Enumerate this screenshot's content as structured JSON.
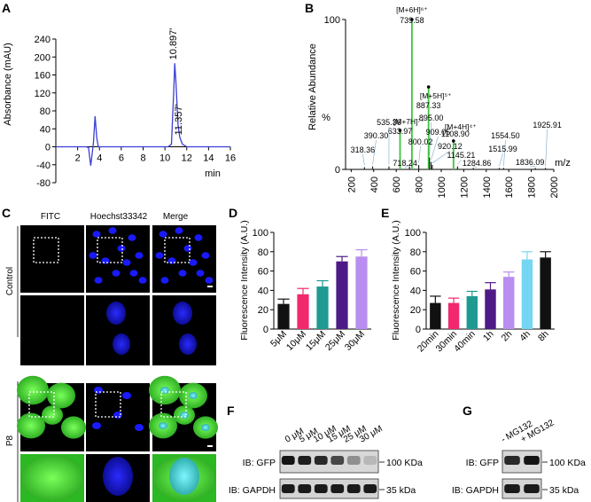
{
  "panels": {
    "A": {
      "letter": "A",
      "chart_data": {
        "type": "line",
        "xlabel": "min",
        "ylabel": "Absorbance (mAU)",
        "xlim": [
          0,
          16
        ],
        "ylim": [
          -80,
          240
        ],
        "xticks": [
          2,
          4,
          6,
          8,
          10,
          12,
          14,
          16
        ],
        "yticks": [
          -80,
          -40,
          0,
          40,
          80,
          120,
          160,
          200,
          240
        ],
        "color": "#3a3fd6",
        "points": [
          [
            0,
            0
          ],
          [
            2.8,
            0
          ],
          [
            3.0,
            -2
          ],
          [
            3.2,
            -42
          ],
          [
            3.35,
            -12
          ],
          [
            3.45,
            10
          ],
          [
            3.6,
            68
          ],
          [
            3.75,
            20
          ],
          [
            3.9,
            0
          ],
          [
            10.3,
            0
          ],
          [
            10.6,
            6
          ],
          [
            10.8,
            120
          ],
          [
            10.897,
            186
          ],
          [
            11.0,
            150
          ],
          [
            11.2,
            50
          ],
          [
            11.357,
            22
          ],
          [
            11.6,
            6
          ],
          [
            12.0,
            0
          ],
          [
            16,
            0
          ]
        ],
        "annotations": [
          {
            "x": 10.897,
            "y": 186,
            "text": "10.897'"
          },
          {
            "x": 11.357,
            "y": 22,
            "text": "11.357'"
          }
        ]
      }
    },
    "B": {
      "letter": "B",
      "chart_data": {
        "type": "bar",
        "xlabel": "m/z",
        "ylabel": "Relative Abundance",
        "ylabel_unit": "%",
        "xlim": [
          150,
          2000
        ],
        "ylim": [
          0,
          100
        ],
        "xticks": [
          200,
          400,
          600,
          800,
          1000,
          1200,
          1400,
          1600,
          1800,
          2000
        ],
        "yticks": [
          0,
          100
        ],
        "color_highlight": "#3ec43e",
        "color_minor": "#222222",
        "peaks": [
          {
            "x": 739.58,
            "y": 100,
            "highlight": true,
            "label": "739.58",
            "ion": "[M+6H]⁶⁺"
          },
          {
            "x": 887.33,
            "y": 55,
            "highlight": true,
            "label": "887.33",
            "ion": "[M+5H]⁵⁺"
          },
          {
            "x": 633.97,
            "y": 26,
            "highlight": true,
            "label": "633.97",
            "ion": "[M+7H]⁷⁺"
          },
          {
            "x": 1108.9,
            "y": 19,
            "highlight": true,
            "label": "1108.90",
            "ion": "[M+4H]⁴⁺"
          },
          {
            "x": 895.0,
            "y": 8,
            "label": "895.00"
          },
          {
            "x": 909.05,
            "y": 5,
            "label": "909.05"
          },
          {
            "x": 920.12,
            "y": 3,
            "label": "920.12"
          },
          {
            "x": 800.02,
            "y": 3,
            "label": "800.02"
          },
          {
            "x": 718.24,
            "y": 2,
            "label": "718.24"
          },
          {
            "x": 1145.21,
            "y": 2,
            "label": "1145.21"
          },
          {
            "x": 535.36,
            "y": 2,
            "label": "535.36"
          },
          {
            "x": 390.3,
            "y": 2,
            "label": "390.30"
          },
          {
            "x": 318.36,
            "y": 1.5,
            "label": "318.36"
          },
          {
            "x": 1284.86,
            "y": 1,
            "label": "1284.86"
          },
          {
            "x": 1554.5,
            "y": 1,
            "label": "1554.50"
          },
          {
            "x": 1515.99,
            "y": 1,
            "label": "1515.99"
          },
          {
            "x": 1836.09,
            "y": 1,
            "label": "1836.09"
          },
          {
            "x": 1925.91,
            "y": 1,
            "label": "1925.91"
          }
        ]
      }
    },
    "C": {
      "letter": "C",
      "columns": [
        "FITC",
        "Hoechst33342",
        "Merge"
      ],
      "rows": [
        "Control",
        "P8"
      ]
    },
    "D": {
      "letter": "D",
      "chart_data": {
        "type": "bar",
        "ylabel": "Fluorescence Intensity (A.U.)",
        "ylim": [
          0,
          100
        ],
        "yticks": [
          0,
          20,
          40,
          60,
          80,
          100
        ],
        "categories": [
          "5μM",
          "10μM",
          "15μM",
          "25μM",
          "30μM"
        ],
        "values": [
          26,
          36,
          44,
          70,
          75
        ],
        "errors": [
          5,
          6,
          6,
          5,
          7
        ],
        "colors": [
          "#111111",
          "#f2286e",
          "#1f9a93",
          "#4d1a86",
          "#b98ef0"
        ]
      }
    },
    "E": {
      "letter": "E",
      "chart_data": {
        "type": "bar",
        "ylabel": "Fluorescence Intensity (A.U.)",
        "ylim": [
          0,
          100
        ],
        "yticks": [
          0,
          20,
          40,
          60,
          80,
          100
        ],
        "categories": [
          "20min",
          "30min",
          "40min",
          "1h",
          "2h",
          "4h",
          "8h"
        ],
        "values": [
          27,
          27,
          34,
          41,
          54,
          72,
          74
        ],
        "errors": [
          7,
          5,
          5,
          7,
          5,
          8,
          6
        ],
        "colors": [
          "#111111",
          "#f2286e",
          "#1f9a93",
          "#4d1a86",
          "#b98ef0",
          "#74d6f2",
          "#111111"
        ]
      }
    },
    "F": {
      "letter": "F",
      "lanes": [
        "0 μM",
        "5 μM",
        "10 μM",
        "15 μM",
        "25 μM",
        "30 μM"
      ],
      "row1": "IB: GFP",
      "row2": "IB: GAPDH",
      "mw1": "100 KDa",
      "mw2": "35 kDa"
    },
    "G": {
      "letter": "G",
      "lanes": [
        "- MG132",
        "+ MG132"
      ],
      "row1": "IB: GFP",
      "row2": "IB: GAPDH",
      "mw1": "100 KDa",
      "mw2": "35 kDa"
    }
  }
}
